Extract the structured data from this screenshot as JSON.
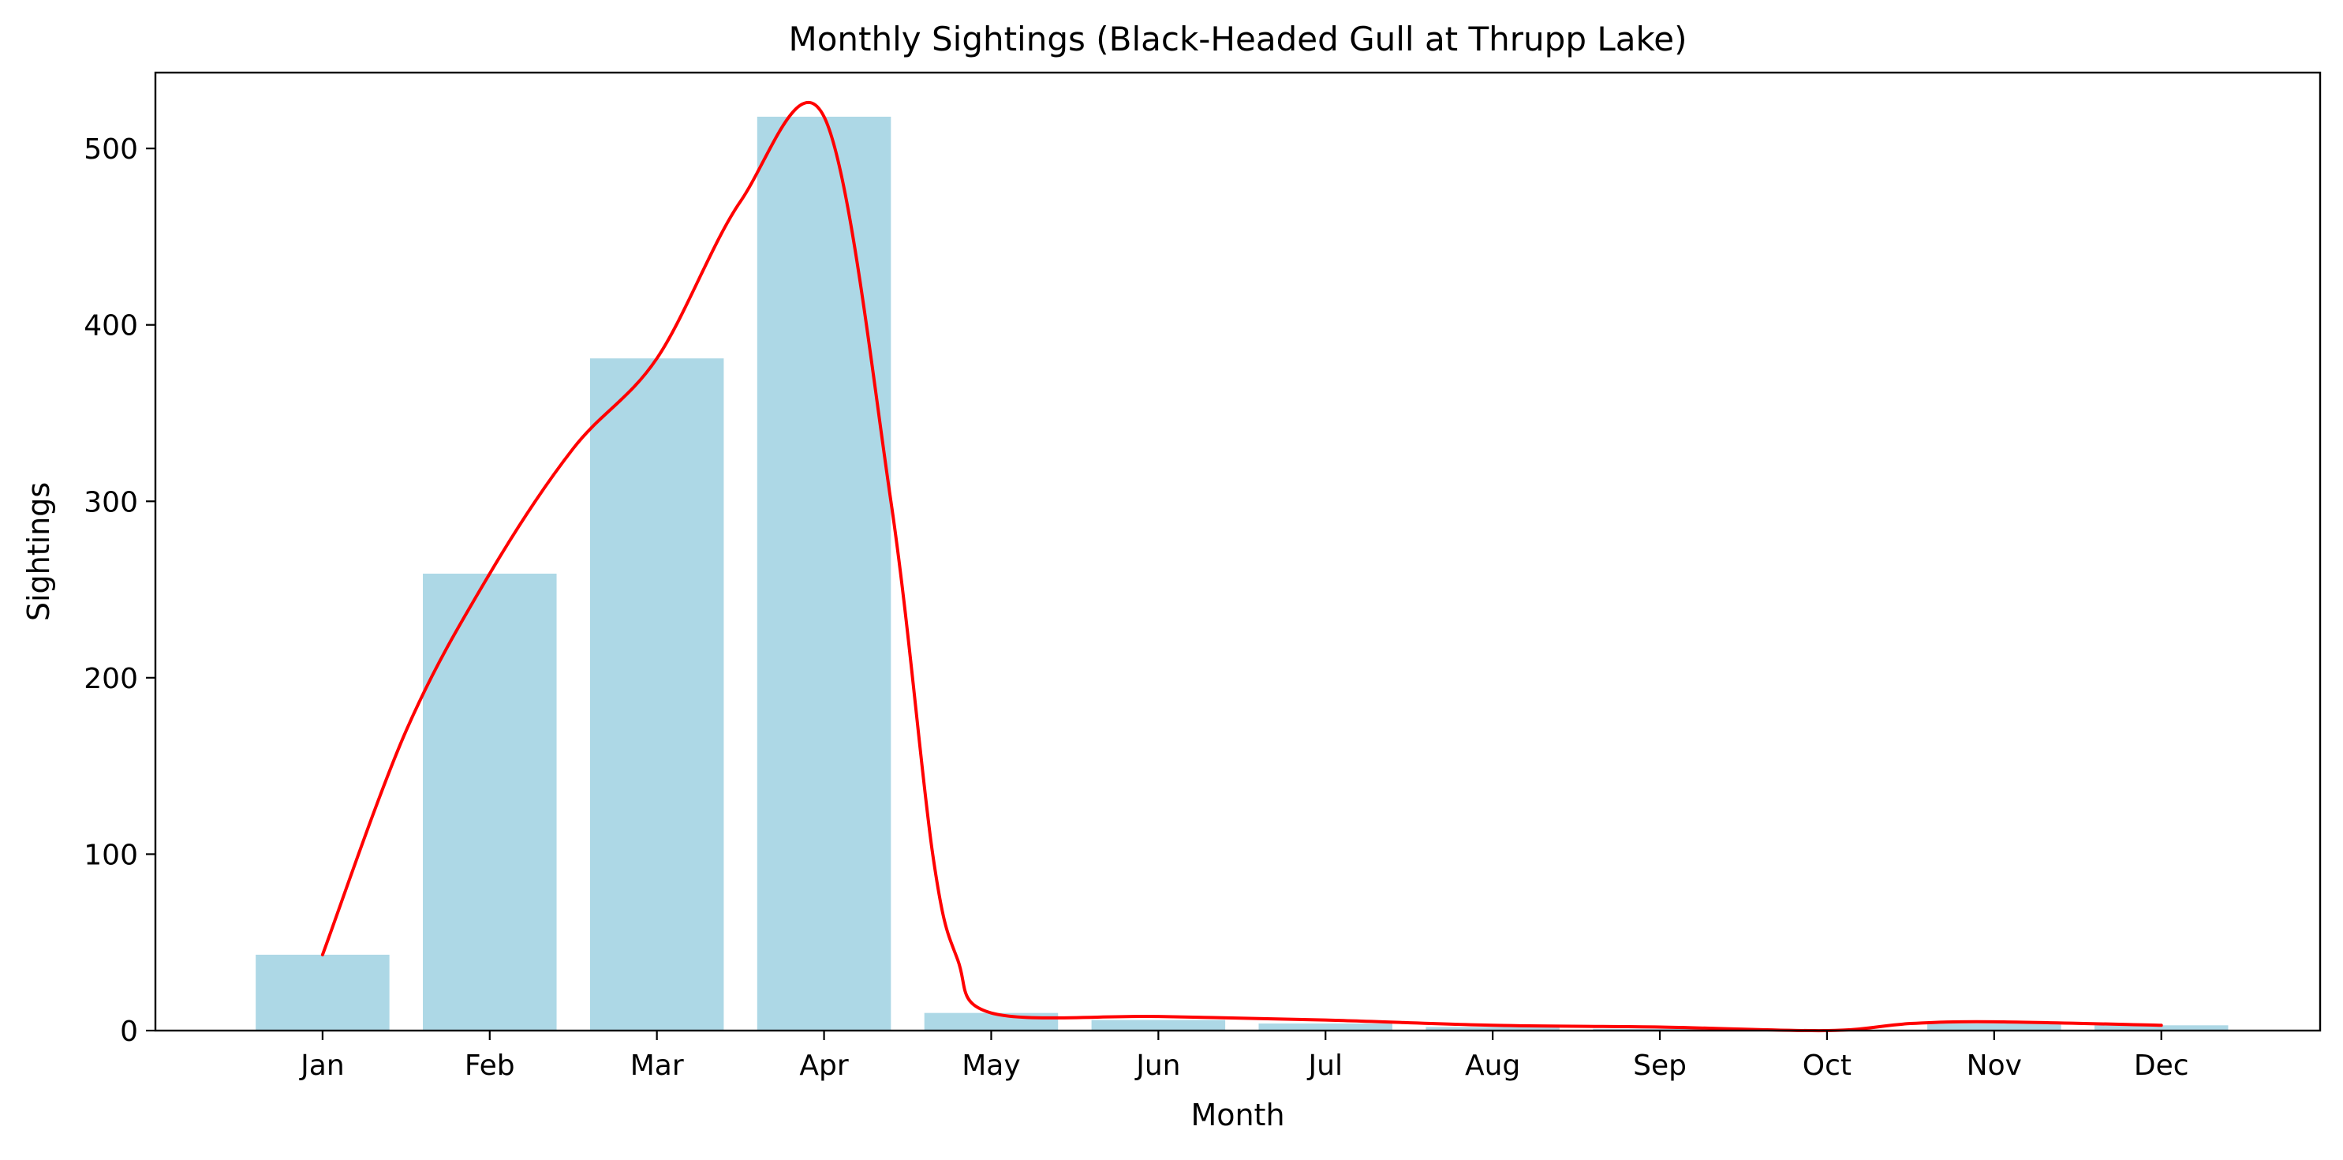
{
  "chart_data": {
    "type": "bar",
    "title": "Monthly Sightings (Black-Headed Gull at Thrupp Lake)",
    "xlabel": "Month",
    "ylabel": "Sightings",
    "categories": [
      "Jan",
      "Feb",
      "Mar",
      "Apr",
      "May",
      "Jun",
      "Jul",
      "Aug",
      "Sep",
      "Oct",
      "Nov",
      "Dec"
    ],
    "values": [
      43,
      259,
      381,
      518,
      10,
      6,
      4,
      2,
      1,
      0,
      4,
      3
    ],
    "ylim": [
      0,
      543
    ],
    "yticks": [
      0,
      100,
      200,
      300,
      400,
      500
    ],
    "grid": false,
    "legend": "none",
    "bar_color": "#add8e6",
    "line_color": "#ff0000",
    "overlay": {
      "type": "smooth-line",
      "points": [
        {
          "x": 0,
          "y": 43
        },
        {
          "x": 0.5,
          "y": 170
        },
        {
          "x": 1,
          "y": 259
        },
        {
          "x": 1.5,
          "y": 330
        },
        {
          "x": 2,
          "y": 381
        },
        {
          "x": 2.5,
          "y": 470
        },
        {
          "x": 3,
          "y": 518
        },
        {
          "x": 3.4,
          "y": 300
        },
        {
          "x": 3.65,
          "y": 100
        },
        {
          "x": 3.8,
          "y": 40
        },
        {
          "x": 4,
          "y": 10
        },
        {
          "x": 5,
          "y": 8
        },
        {
          "x": 6,
          "y": 6
        },
        {
          "x": 7,
          "y": 3
        },
        {
          "x": 8,
          "y": 2
        },
        {
          "x": 9,
          "y": 0
        },
        {
          "x": 9.5,
          "y": 4
        },
        {
          "x": 10,
          "y": 5
        },
        {
          "x": 11,
          "y": 3
        }
      ]
    }
  }
}
